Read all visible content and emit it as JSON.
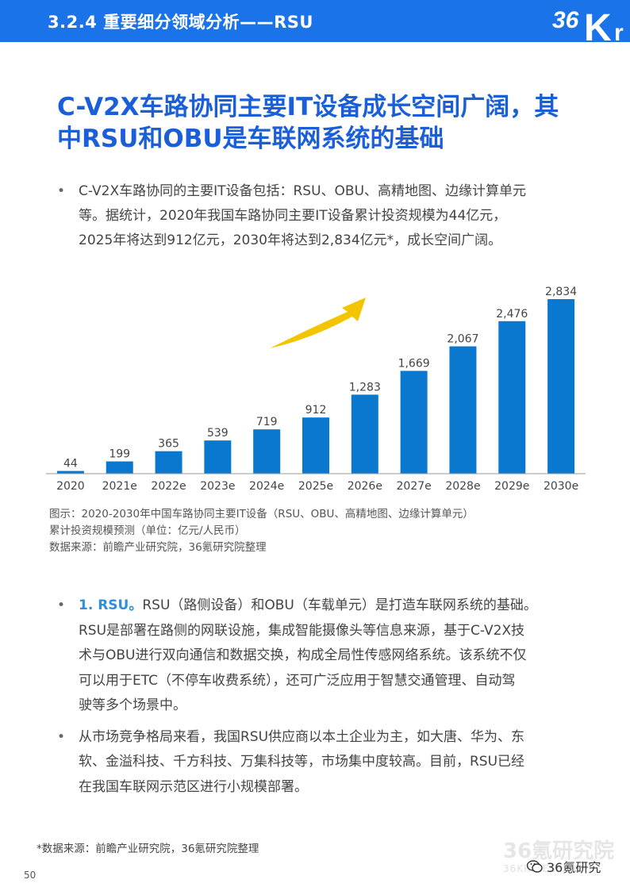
{
  "header": {
    "title": "3.2.4 重要细分领域分析——RSU",
    "logo_text": "36Kr"
  },
  "headline": {
    "line1": "C-V2X车路协同主要IT设备成长空间广阔，其",
    "line2": "中RSU和OBU是车联网系统的基础"
  },
  "intro": {
    "bullet_symbol": "•",
    "lines": [
      "C-V2X车路协同的主要IT设备包括：RSU、OBU、高精地图、边缘计算单元",
      "等。据统计，2020年我国车路协同主要IT设备累计投资规模为44亿元，",
      "2025年将达到912亿元，2030年将达到2,834亿元*，成长空间广阔。"
    ]
  },
  "chart_data": {
    "type": "bar",
    "categories": [
      "2020",
      "2021e",
      "2022e",
      "2023e",
      "2024e",
      "2025e",
      "2026e",
      "2027e",
      "2028e",
      "2029e",
      "2030e"
    ],
    "values": [
      44,
      199,
      365,
      539,
      719,
      912,
      1283,
      1669,
      2067,
      2476,
      2834
    ],
    "value_labels": [
      "44",
      "199",
      "365",
      "539",
      "719",
      "912",
      "1,283",
      "1,669",
      "2,067",
      "2,476",
      "2,834"
    ],
    "title": "",
    "xlabel": "",
    "ylabel": "",
    "ylim": [
      0,
      2834
    ],
    "grid": false,
    "legend": "none",
    "colors": {
      "bar": "#0b78d0",
      "arrow": "#f2c500",
      "axis": "#999999"
    }
  },
  "caption": {
    "line1": "图示：2020-2030年中国车路协同主要IT设备（RSU、OBU、高精地图、边缘计算单元）",
    "line2": "累计投资规模预测（单位：亿元/人民币）",
    "line3": "数据来源：前瞻产业研究院，36氪研究院整理"
  },
  "section2": {
    "p1_lead": "1. RSU。",
    "p1_lines": [
      "RSU（路侧设备）和OBU（车载单元）是打造车联网系统的基础。",
      "RSU是部署在路侧的网联设施，集成智能摄像头等信息来源，基于C-V2X技",
      "术与OBU进行双向通信和数据交换，构成全局性传感网络系统。该系统不仅",
      "可以用于ETC（不停车收费系统），还可广泛应用于智慧交通管理、自动驾",
      "驶等多个场景中。"
    ],
    "p2_lines": [
      "从市场竞争格局来看，我国RSU供应商以本土企业为主，如大唐、华为、东",
      "软、金溢科技、千方科技、万集科技等，市场集中度较高。目前，RSU已经",
      "在我国车联网示范区进行小规模部署。"
    ]
  },
  "footer": {
    "footnote": "*数据来源：前瞻产业研究院，36氪研究院整理",
    "page_number": "50",
    "watermark_big": "36氪研究院",
    "watermark_small": "36KR RESEARCH",
    "wechat_label": "36氪研究"
  }
}
